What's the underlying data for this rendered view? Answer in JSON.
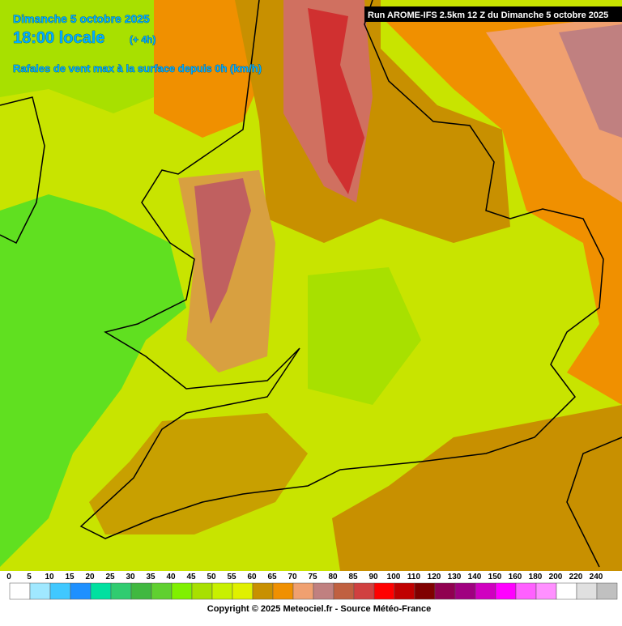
{
  "header": {
    "date": "Dimanche 5 octobre 2025",
    "time": "18:00 locale",
    "offset": "(+ 4h)",
    "parameter": "Rafales de vent max à la surface depuis 0h (km/h)",
    "run": "Run AROME-IFS 2.5km 12 Z du Dimanche 5 octobre 2025"
  },
  "legend": {
    "labels": [
      0,
      5,
      10,
      15,
      20,
      25,
      30,
      35,
      40,
      45,
      50,
      55,
      60,
      65,
      70,
      75,
      80,
      85,
      90,
      100,
      110,
      120,
      130,
      140,
      150,
      160,
      180,
      200,
      220,
      240
    ],
    "colors": [
      "#ffffff",
      "#a0e8ff",
      "#40c8ff",
      "#1e90ff",
      "#00e0a0",
      "#30cc70",
      "#40b840",
      "#60d030",
      "#80f000",
      "#a8e000",
      "#c8f000",
      "#e0f000",
      "#c89000",
      "#f09000",
      "#f0a070",
      "#c08080",
      "#c06040",
      "#d04040",
      "#ff0000",
      "#c00000",
      "#800000",
      "#900050",
      "#a00080",
      "#d000c0",
      "#ff00ff",
      "#ff60ff",
      "#ff90ff",
      "#ffffff",
      "#e0e0e0",
      "#c0c0c0"
    ]
  },
  "footer": {
    "copyright": "Copyright © 2025 Meteociel.fr - Source Météo-France"
  }
}
